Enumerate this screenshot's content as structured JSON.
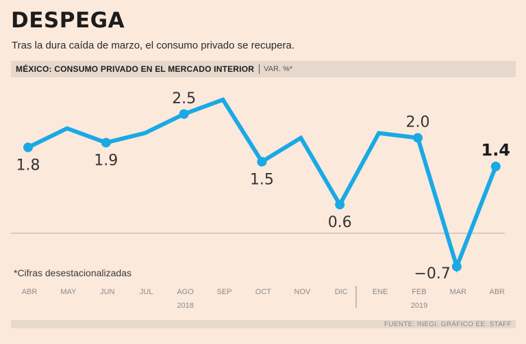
{
  "title": "DESPEGA",
  "subtitle": "Tras la dura caída de marzo, el consumo privado se recupera.",
  "header": {
    "label": "MÉXICO: CONSUMO PRIVADO EN EL MERCADO INTERIOR",
    "unit": "VAR. %*"
  },
  "footnote": "*Cifras desestacionalizadas",
  "source": "FUENTE: INEGI. GRÁFICO EE: STAFF",
  "colors": {
    "line": "#1aa9e5",
    "background": "#fbe9dc",
    "bar": "#e6d8cc"
  },
  "chart_data": {
    "type": "line",
    "categories": [
      "ABR",
      "MAY",
      "JUN",
      "JUL",
      "AGO",
      "SEP",
      "OCT",
      "NOV",
      "DIC",
      "ENE",
      "FEB",
      "MAR",
      "ABR"
    ],
    "year_labels": [
      {
        "label": "2018",
        "category_index": 4
      },
      {
        "label": "2019",
        "category_index": 10
      }
    ],
    "values": [
      1.8,
      2.2,
      1.9,
      2.1,
      2.5,
      2.8,
      1.5,
      2.0,
      0.6,
      2.1,
      2.0,
      -0.7,
      1.4
    ],
    "labels": [
      {
        "index": 0,
        "text": "1.8",
        "position": "below",
        "bold": false
      },
      {
        "index": 2,
        "text": "1.9",
        "position": "below",
        "bold": false
      },
      {
        "index": 4,
        "text": "2.5",
        "position": "above",
        "bold": false
      },
      {
        "index": 6,
        "text": "1.5",
        "position": "below",
        "bold": false
      },
      {
        "index": 8,
        "text": "0.6",
        "position": "below",
        "bold": false
      },
      {
        "index": 10,
        "text": "2.0",
        "position": "above",
        "bold": false
      },
      {
        "index": 11,
        "text": "−0.7",
        "position": "left",
        "bold": false
      },
      {
        "index": 12,
        "text": "1.4",
        "position": "above",
        "bold": true
      }
    ],
    "markers_at": [
      0,
      2,
      4,
      6,
      8,
      10,
      11,
      12
    ],
    "ylim": [
      -0.8,
      3.0
    ],
    "zero_line": true,
    "grid": false,
    "legend": "none"
  }
}
